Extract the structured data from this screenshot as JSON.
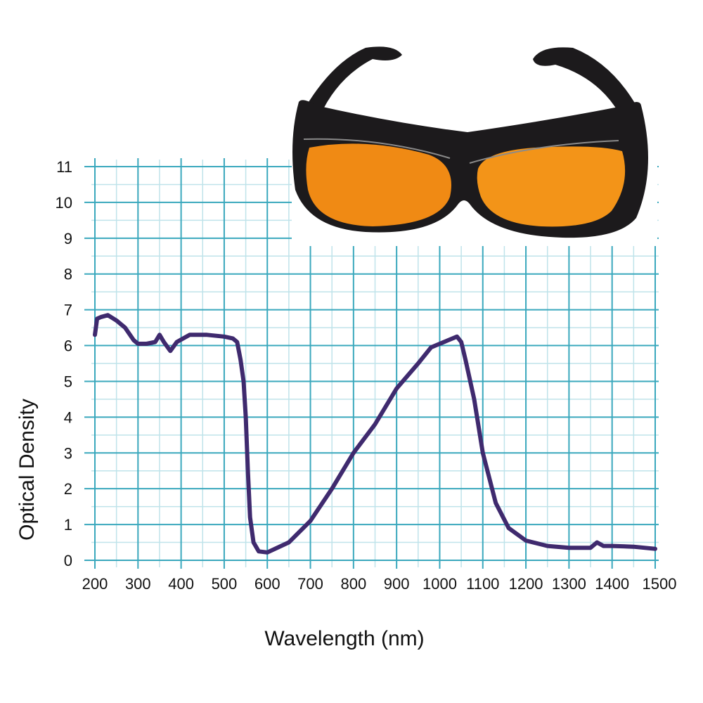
{
  "chart_data": {
    "type": "line",
    "title": "",
    "xlabel": "Wavelength (nm)",
    "ylabel": "Optical Density",
    "xlim": [
      200,
      1500
    ],
    "ylim": [
      0,
      11
    ],
    "xticks": [
      "200",
      "300",
      "400",
      "500",
      "600",
      "700",
      "800",
      "900",
      "1000",
      "1100",
      "1200",
      "1300",
      "1400",
      "1500"
    ],
    "yticks": [
      "0",
      "1",
      "2",
      "3",
      "4",
      "5",
      "6",
      "7",
      "8",
      "9",
      "10",
      "11"
    ],
    "grid": true,
    "minor_grid": true,
    "legend": "none",
    "series": [
      {
        "color": "#3f2a6e",
        "x": [
          200,
          205,
          215,
          230,
          250,
          270,
          290,
          300,
          320,
          340,
          350,
          360,
          375,
          390,
          420,
          460,
          500,
          520,
          530,
          538,
          545,
          550,
          555,
          560,
          568,
          580,
          600,
          650,
          700,
          750,
          800,
          850,
          900,
          950,
          980,
          1000,
          1020,
          1040,
          1050,
          1060,
          1080,
          1100,
          1130,
          1160,
          1200,
          1250,
          1300,
          1350,
          1365,
          1380,
          1400,
          1450,
          1500
        ],
        "y": [
          6.3,
          6.75,
          6.8,
          6.85,
          6.7,
          6.5,
          6.15,
          6.05,
          6.05,
          6.1,
          6.3,
          6.1,
          5.85,
          6.1,
          6.3,
          6.3,
          6.25,
          6.2,
          6.1,
          5.6,
          5.0,
          4.0,
          2.5,
          1.2,
          0.5,
          0.25,
          0.22,
          0.5,
          1.1,
          2.0,
          3.0,
          3.8,
          4.8,
          5.5,
          5.95,
          6.05,
          6.15,
          6.25,
          6.1,
          5.6,
          4.5,
          3.0,
          1.6,
          0.9,
          0.55,
          0.4,
          0.35,
          0.35,
          0.5,
          0.4,
          0.4,
          0.38,
          0.32
        ]
      }
    ],
    "colors": {
      "major_grid": "#3aa8bd",
      "minor_grid": "#bfe3ea",
      "lens": "#f08a14",
      "frame": "#1c1a1c"
    }
  }
}
